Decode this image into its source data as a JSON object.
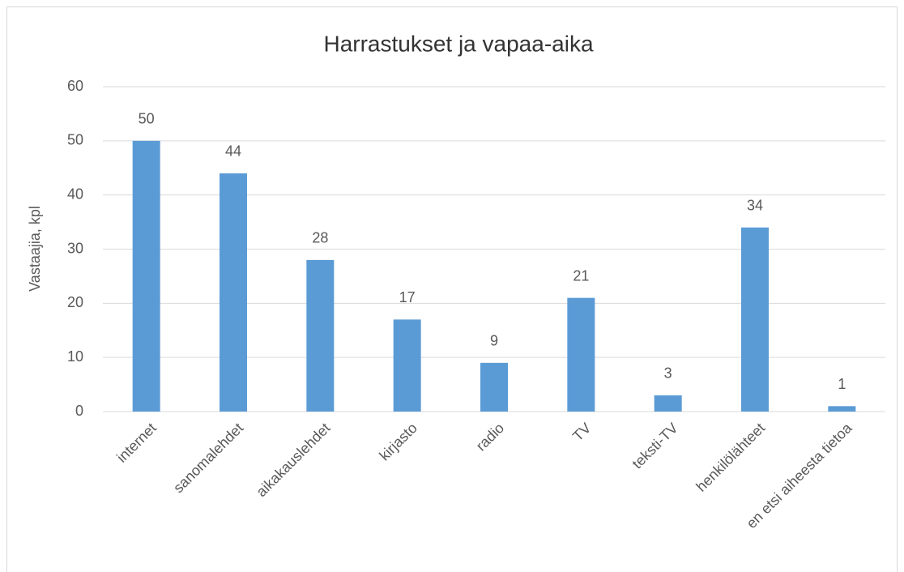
{
  "chart_data": {
    "type": "bar",
    "title": "Harrastukset ja vapaa-aika",
    "y_label": "Vastaajia, kpl",
    "categories": [
      "internet",
      "sanomalehdet",
      "aikakauslehdet",
      "kirjasto",
      "radio",
      "TV",
      "teksti-TV",
      "henkilölähteet",
      "en etsi aiheesta tietoa"
    ],
    "values": [
      50,
      44,
      28,
      17,
      9,
      21,
      3,
      34,
      1
    ],
    "color": "#5b9bd5",
    "ylim": [
      0,
      60
    ],
    "yticks": [
      0,
      10,
      20,
      30,
      40,
      50,
      60
    ],
    "grid": true
  }
}
